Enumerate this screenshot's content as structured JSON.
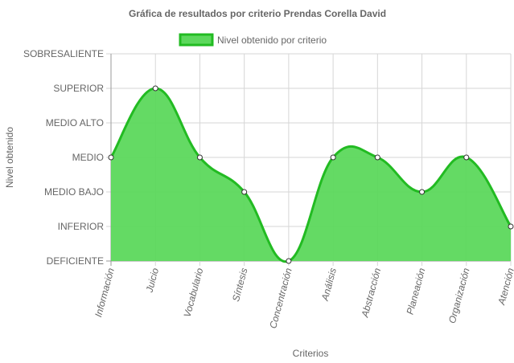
{
  "chart_data": {
    "type": "area",
    "title": "Gráfica de resultados por criterio Prendas Corella David",
    "xlabel": "Criterios",
    "ylabel": "Nivel obtenido",
    "y_levels": [
      "DEFICIENTE",
      "INFERIOR",
      "MEDIO BAJO",
      "MEDIO",
      "MEDIO ALTO",
      "SUPERIOR",
      "SOBRESALIENTE"
    ],
    "ylim": [
      0,
      6
    ],
    "categories": [
      "Información",
      "Juicio",
      "Vocabulario",
      "Síntesis",
      "Concentración",
      "Análisis",
      "Abstracción",
      "Planeación",
      "Organización",
      "Atención"
    ],
    "series": [
      {
        "name": "Nivel obtenido por criterio",
        "values": [
          3,
          5,
          3,
          2,
          0,
          3,
          3,
          2,
          3,
          1
        ]
      }
    ],
    "legend_position": "top",
    "grid": true,
    "colors": {
      "fill": "#5cd85c",
      "stroke": "#22bb22",
      "grid": "#d6d6d6",
      "axis": "#999999",
      "text": "#666666"
    }
  }
}
